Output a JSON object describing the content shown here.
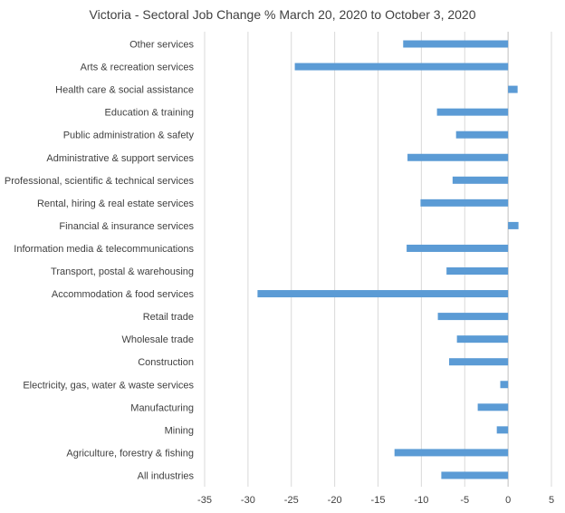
{
  "chart_data": {
    "type": "bar",
    "orientation": "horizontal",
    "title": "Victoria - Sectoral Job Change % March 20, 2020 to October 3, 2020",
    "xlabel": "",
    "ylabel": "",
    "categories": [
      "Other services",
      "Arts & recreation services",
      "Health care & social assistance",
      "Education & training",
      "Public administration & safety",
      "Administrative & support services",
      "Professional, scientific & technical services",
      "Rental, hiring & real estate services",
      "Financial & insurance services",
      "Information media & telecommunications",
      "Transport, postal & warehousing",
      "Accommodation & food services",
      "Retail trade",
      "Wholesale trade",
      "Construction",
      "Electricity, gas, water & waste services",
      "Manufacturing",
      "Mining",
      "Agriculture, forestry & fishing",
      "All industries"
    ],
    "values": [
      -12.1,
      -24.6,
      1.1,
      -8.2,
      -6.0,
      -11.6,
      -6.4,
      -10.1,
      1.2,
      -11.7,
      -7.1,
      -28.9,
      -8.1,
      -5.9,
      -6.8,
      -0.9,
      -3.5,
      -1.3,
      -13.1,
      -7.7
    ],
    "xlim": [
      -35,
      5
    ],
    "ticks": [
      "-35",
      "-30",
      "-25",
      "-20",
      "-15",
      "-10",
      "-5",
      "0",
      "5"
    ],
    "tick_values": [
      -35,
      -30,
      -25,
      -20,
      -15,
      -10,
      -5,
      0,
      5
    ],
    "grid": "vertical",
    "legend": "none",
    "bar_color": "#5b9bd5"
  }
}
